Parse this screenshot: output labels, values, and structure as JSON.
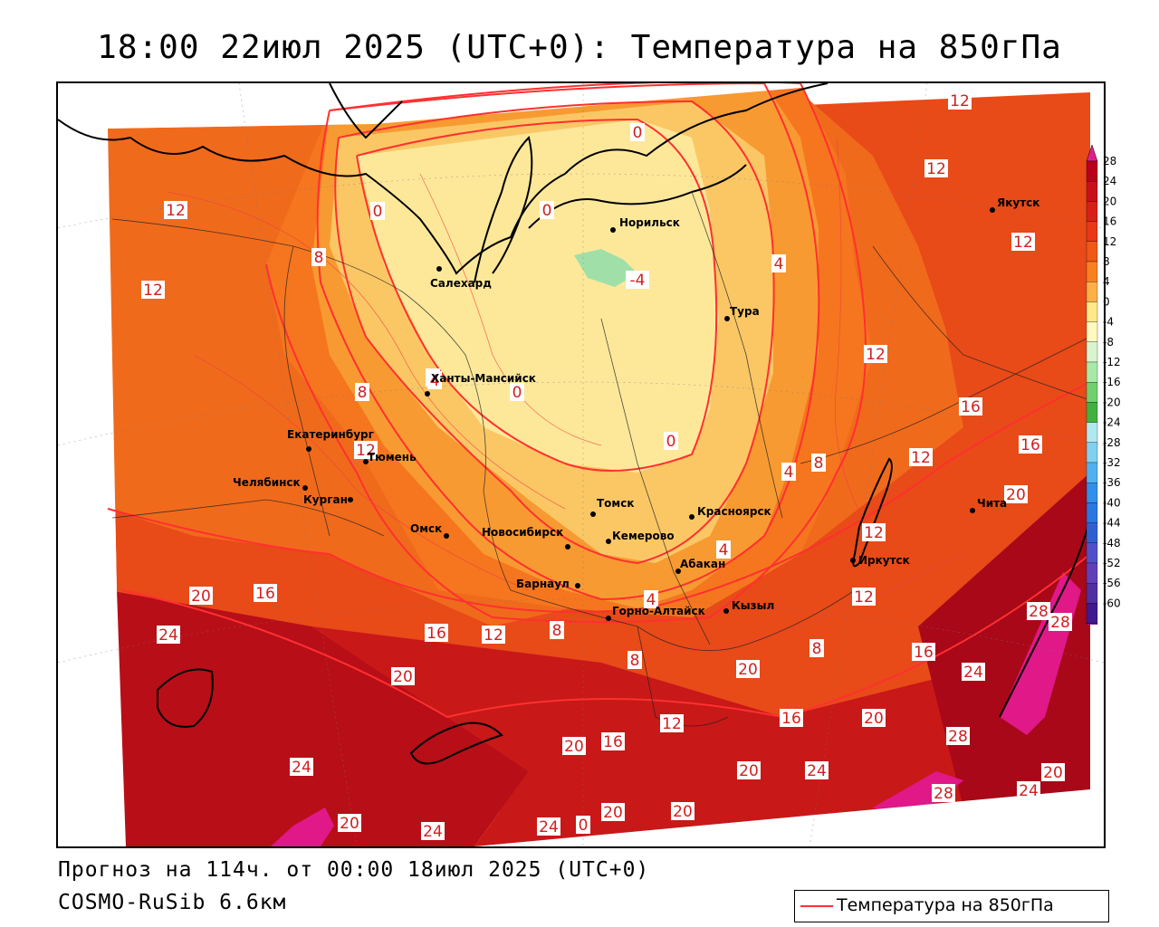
{
  "title": "18:00 22июл 2025 (UTC+0): Температура на 850гПа",
  "footer": {
    "forecast": "Прогноз на 114ч. от 00:00 18июл 2025 (UTC+0)",
    "model": "COSMO-RuSib 6.6км"
  },
  "legend": {
    "label": "Температура на 850гПа",
    "line_color": "#ff3030"
  },
  "colorbar": {
    "ticks": [
      "28",
      "24",
      "20",
      "16",
      "12",
      "8",
      "4",
      "0",
      "-4",
      "-8",
      "-12",
      "-16",
      "-20",
      "-24",
      "-28",
      "-32",
      "-36",
      "-40",
      "-44",
      "-48",
      "-52",
      "-56",
      "-60"
    ],
    "colors": [
      "#b8001a",
      "#c8101a",
      "#d82018",
      "#e83818",
      "#f05818",
      "#f88020",
      "#fdb048",
      "#fde88a",
      "#fff8c0",
      "#d8f5d0",
      "#a8e8a8",
      "#70d070",
      "#40b040",
      "#b0e8f0",
      "#80d0f0",
      "#50b0f0",
      "#3090e8",
      "#2878e0",
      "#3060d0",
      "#5050c8",
      "#6040b8",
      "#5030a0",
      "#401890"
    ],
    "top_color": "#e0208a",
    "bottom_color": "#9020a0"
  },
  "cities": [
    {
      "name": "Норильск"
    },
    {
      "name": "Салехард"
    },
    {
      "name": "Тура"
    },
    {
      "name": "Якутск"
    },
    {
      "name": "Ханты-Мансийск"
    },
    {
      "name": "Екатеринбург"
    },
    {
      "name": "Тюмень"
    },
    {
      "name": "Челябинск"
    },
    {
      "name": "Курган"
    },
    {
      "name": "Омск"
    },
    {
      "name": "Новосибирск"
    },
    {
      "name": "Томск"
    },
    {
      "name": "Кемерово"
    },
    {
      "name": "Красноярск"
    },
    {
      "name": "Абакан"
    },
    {
      "name": "Барнаул"
    },
    {
      "name": "Горно-Алтайск"
    },
    {
      "name": "Кызыл"
    },
    {
      "name": "Иркутск"
    },
    {
      "name": "Чита"
    }
  ],
  "contour_labels": [
    "0",
    "0",
    "0",
    "-4",
    "4",
    "12",
    "12",
    "12",
    "12",
    "8",
    "12",
    "12",
    "4",
    "8",
    "0",
    "0",
    "4",
    "12",
    "16",
    "12",
    "20",
    "12",
    "16",
    "4",
    "8",
    "4",
    "20",
    "16",
    "24",
    "16",
    "12",
    "8",
    "8",
    "4",
    "12",
    "8",
    "28",
    "28",
    "16",
    "24",
    "20",
    "12",
    "16",
    "20",
    "28",
    "24",
    "20",
    "16",
    "24",
    "20",
    "20",
    "20",
    "24",
    "28",
    "24",
    "20",
    "24",
    "20",
    "20",
    "0"
  ]
}
